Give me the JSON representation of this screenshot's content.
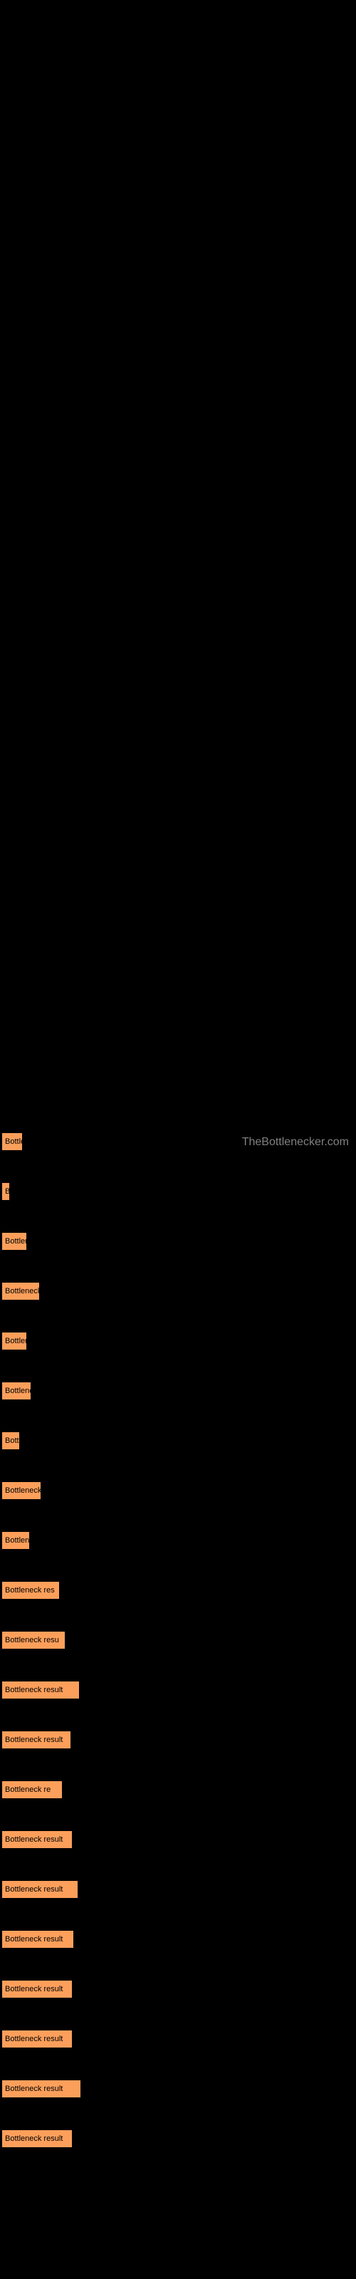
{
  "watermark": "TheBottlenecker.com",
  "chart": {
    "type": "bar",
    "orientation": "horizontal",
    "bar_color": "#fc9f5b",
    "bar_border_color": "#000000",
    "text_color": "#000000",
    "background_color": "#000000",
    "watermark_color": "#808080",
    "label_fontsize": 11,
    "bar_spacing": 44,
    "bars": [
      {
        "label": "Bottle",
        "width": 30
      },
      {
        "label": "B",
        "width": 12
      },
      {
        "label": "Bottlen",
        "width": 36
      },
      {
        "label": "Bottleneck",
        "width": 54
      },
      {
        "label": "Bottler",
        "width": 36
      },
      {
        "label": "Bottlene",
        "width": 42
      },
      {
        "label": "Bott",
        "width": 26
      },
      {
        "label": "Bottleneck",
        "width": 56
      },
      {
        "label": "Bottlen",
        "width": 40
      },
      {
        "label": "Bottleneck res",
        "width": 82
      },
      {
        "label": "Bottleneck resu",
        "width": 90
      },
      {
        "label": "Bottleneck result",
        "width": 110
      },
      {
        "label": "Bottleneck result",
        "width": 98
      },
      {
        "label": "Bottleneck re",
        "width": 86
      },
      {
        "label": "Bottleneck result",
        "width": 100
      },
      {
        "label": "Bottleneck result",
        "width": 108
      },
      {
        "label": "Bottleneck result",
        "width": 102
      },
      {
        "label": "Bottleneck result",
        "width": 100
      },
      {
        "label": "Bottleneck result",
        "width": 100
      },
      {
        "label": "Bottleneck result",
        "width": 112
      },
      {
        "label": "Bottleneck result",
        "width": 100
      }
    ]
  }
}
